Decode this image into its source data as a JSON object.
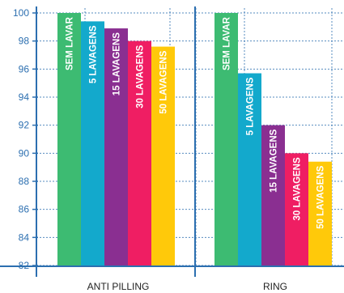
{
  "chart_data": {
    "type": "bar",
    "title": "",
    "xlabel": "",
    "ylabel": "",
    "ylim": [
      82,
      100
    ],
    "yticks": [
      "82",
      "84",
      "86",
      "88",
      "90",
      "92",
      "94",
      "96",
      "98",
      "100"
    ],
    "grid": true,
    "categories": [
      "ANTI PILLING",
      "RING"
    ],
    "series": [
      {
        "name": "SEM LAVAR",
        "color": "#3dbb72",
        "values": [
          100,
          100
        ]
      },
      {
        "name": "5 LAVAGENS",
        "color": "#13a9cc",
        "values": [
          99.4,
          95.7
        ]
      },
      {
        "name": "15 LAVAGENS",
        "color": "#8a2f91",
        "values": [
          98.9,
          92.0
        ]
      },
      {
        "name": "30 LAVAGENS",
        "color": "#ef1e63",
        "values": [
          98.0,
          90.0
        ]
      },
      {
        "name": "50 LAVAGENS",
        "color": "#ffc90a",
        "values": [
          97.6,
          89.4
        ]
      }
    ],
    "colors": {
      "axis": "#2c6fb0",
      "grid": "#2c6fb0"
    }
  }
}
